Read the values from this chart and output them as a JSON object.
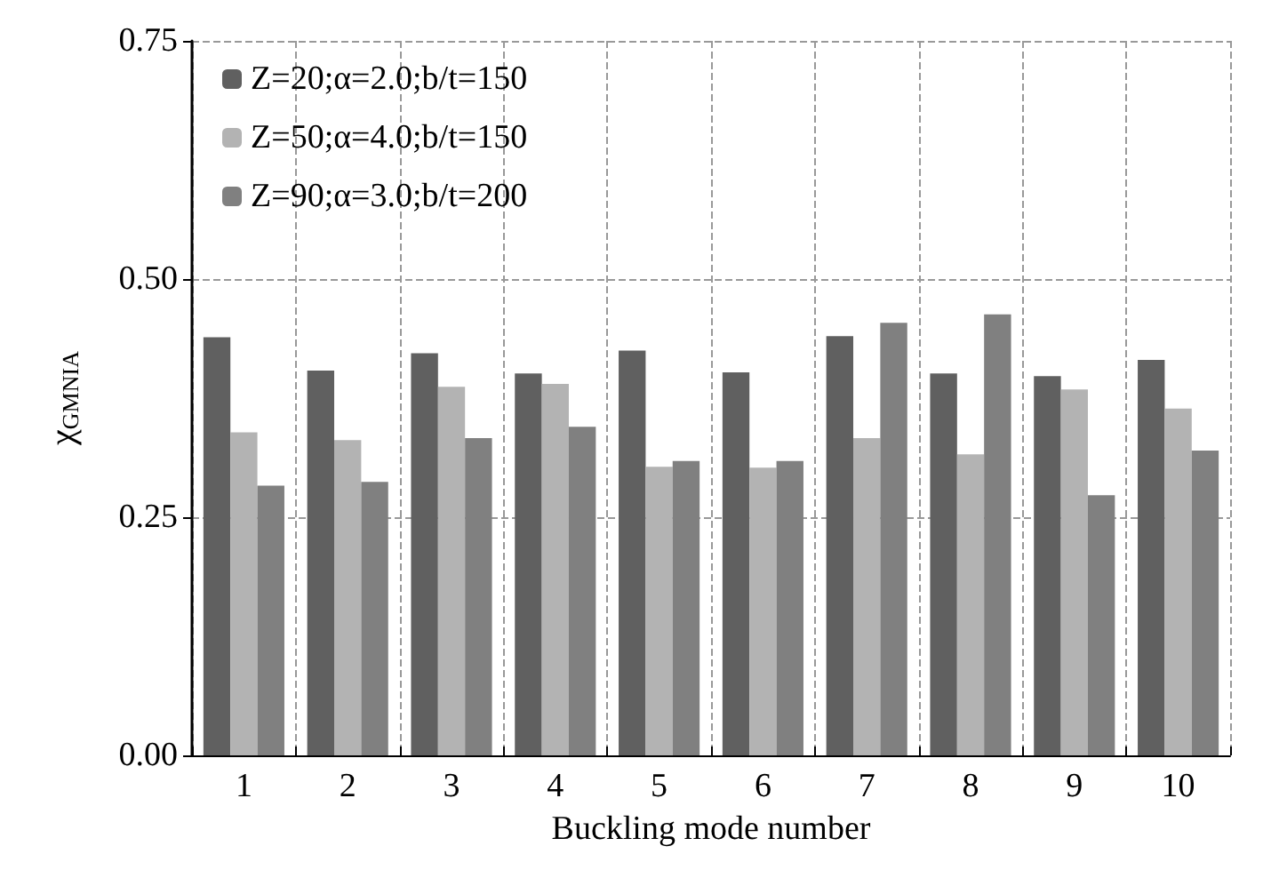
{
  "chart_data": {
    "type": "bar",
    "xlabel": "Buckling mode number",
    "ylabel": "χ$_{GMNIA}$",
    "categories": [
      "1",
      "2",
      "3",
      "4",
      "5",
      "6",
      "7",
      "8",
      "9",
      "10"
    ],
    "series": [
      {
        "name": "Z=20;α=2.0;b/t=150",
        "color": "#606060",
        "values": [
          0.439,
          0.404,
          0.422,
          0.401,
          0.425,
          0.402,
          0.44,
          0.401,
          0.398,
          0.415
        ]
      },
      {
        "name": "Z=50;α=4.0;b/t=150",
        "color": "#b3b3b3",
        "values": [
          0.339,
          0.331,
          0.387,
          0.39,
          0.303,
          0.302,
          0.333,
          0.316,
          0.384,
          0.364
        ]
      },
      {
        "name": "Z=90;α=3.0;b/t=200",
        "color": "#808080",
        "values": [
          0.283,
          0.287,
          0.333,
          0.345,
          0.309,
          0.309,
          0.454,
          0.463,
          0.273,
          0.32
        ]
      }
    ],
    "ylim": [
      0,
      0.75
    ],
    "yticks": [
      {
        "value": 0,
        "label": "0.00"
      },
      {
        "value": 0.25,
        "label": "0.25"
      },
      {
        "value": 0.5,
        "label": "0.50"
      },
      {
        "value": 0.75,
        "label": "0.75"
      }
    ],
    "grid": true,
    "legend": "top left"
  }
}
